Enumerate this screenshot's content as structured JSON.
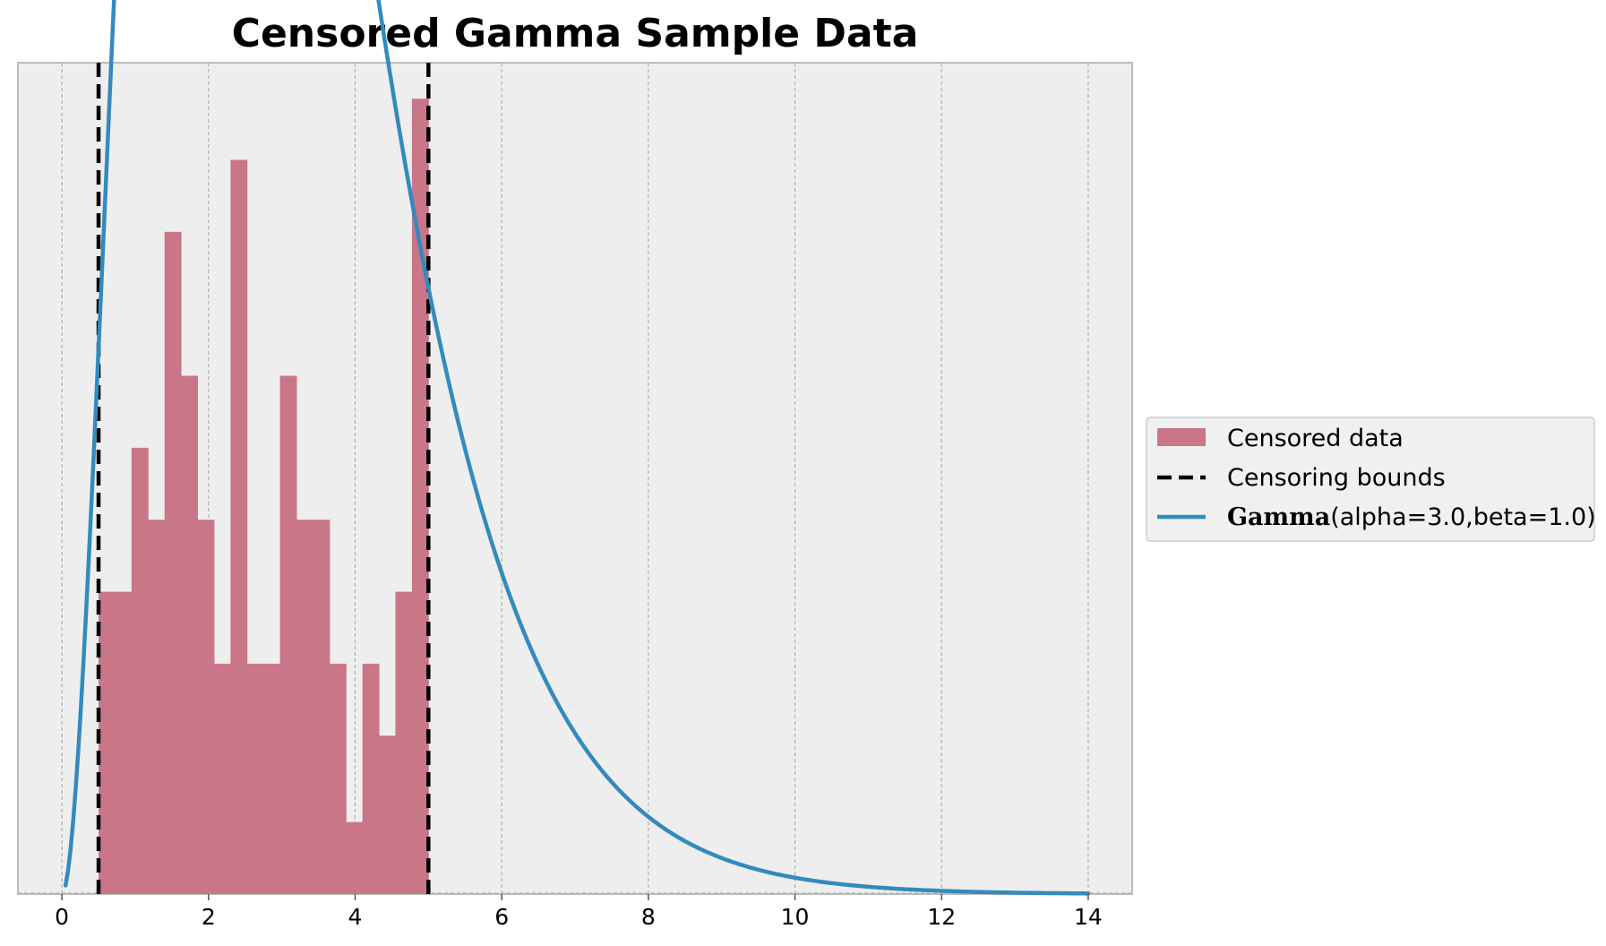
{
  "chart_data": {
    "type": "bar",
    "title": "Censored Gamma Sample Data",
    "xlabel": "",
    "ylabel": "",
    "xlim": [
      -0.6,
      14.6
    ],
    "ylim": [
      0,
      0.1155
    ],
    "xticks": [
      0,
      2,
      4,
      6,
      8,
      10,
      12,
      14
    ],
    "grid": true,
    "legend_position": "right",
    "histogram": {
      "name": "Censored data",
      "color": "#c87688",
      "bin_width": 0.225,
      "bin_start": 0.5,
      "heights": [
        0.042,
        0.042,
        0.062,
        0.052,
        0.092,
        0.072,
        0.052,
        0.032,
        0.102,
        0.032,
        0.032,
        0.072,
        0.052,
        0.052,
        0.032,
        0.01,
        0.032,
        0.022,
        0.042,
        0.1105
      ]
    },
    "censoring_bounds": {
      "name": "Censoring bounds",
      "values": [
        0.5,
        5.0
      ],
      "color": "#000000"
    },
    "pdf_curve": {
      "name_bold": "Gamma",
      "name_rest": "(alpha=3.0,beta=1.0)",
      "alpha": 3.0,
      "beta": 1.0,
      "x_range": [
        0.05,
        14
      ],
      "color": "#348abd"
    },
    "colors": {
      "axes_bg": "#eeeeee",
      "grid": "#b0b0b0",
      "spine": "#bcbcbc"
    }
  }
}
